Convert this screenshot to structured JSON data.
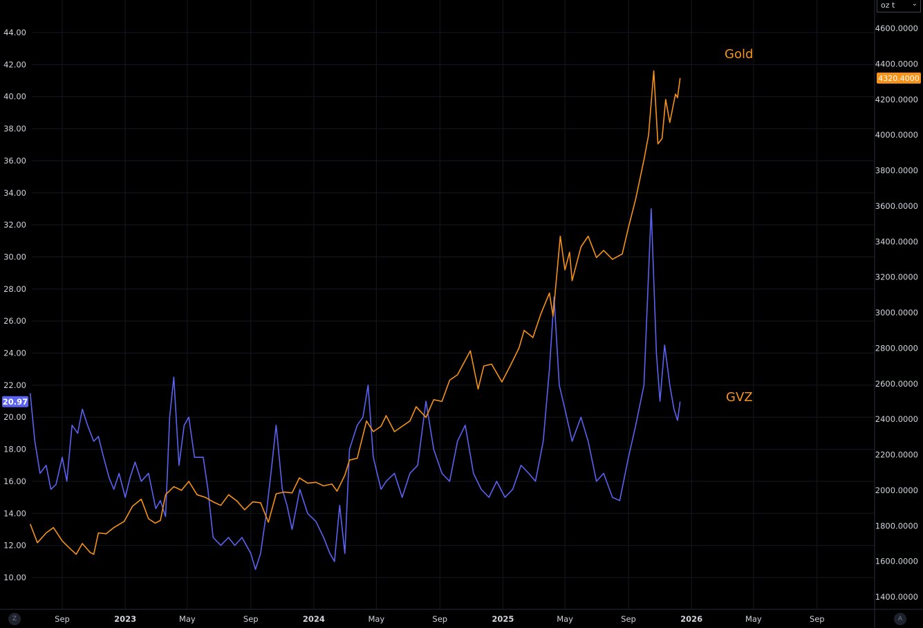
{
  "unit_selector": {
    "label": "oz t",
    "chevron": "⌄"
  },
  "buttons": {
    "left_corner": "Z",
    "right_corner": "A"
  },
  "colors": {
    "gold": "#f7931a",
    "gvz": "#5b63f0",
    "grid": "#1a1d24",
    "axis_text": "#d1d4dc",
    "background": "#000000"
  },
  "chart_data": {
    "type": "line",
    "title": "",
    "x_tick_labels": [
      "Sep",
      "2023",
      "May",
      "Sep",
      "2024",
      "May",
      "Sep",
      "2025",
      "May",
      "Sep",
      "2026",
      "May",
      "Sep"
    ],
    "left_axis": {
      "ticks": [
        "10.00",
        "12.00",
        "14.00",
        "16.00",
        "18.00",
        "20.00",
        "22.00",
        "24.00",
        "26.00",
        "28.00",
        "30.00",
        "32.00",
        "34.00",
        "36.00",
        "38.00",
        "40.00",
        "42.00",
        "44.00"
      ],
      "range": [
        9,
        46
      ]
    },
    "right_axis": {
      "ticks": [
        "1400.0000",
        "1600.0000",
        "1800.0000",
        "2000.0000",
        "2200.0000",
        "2400.0000",
        "2600.0000",
        "2800.0000",
        "3000.0000",
        "3200.0000",
        "3400.0000",
        "3600.0000",
        "3800.0000",
        "4000.0000",
        "4200.0000",
        "4400.0000",
        "4600.0000"
      ],
      "range": [
        1345,
        4675
      ]
    },
    "last_value_badges": {
      "gvz": "20.97",
      "gold": "4320.4000"
    },
    "series": [
      {
        "name": "Gold",
        "axis": "right",
        "points": [
          [
            "2022-07-01",
            1810
          ],
          [
            "2022-07-15",
            1705
          ],
          [
            "2022-08-01",
            1760
          ],
          [
            "2022-08-15",
            1790
          ],
          [
            "2022-09-01",
            1715
          ],
          [
            "2022-09-15",
            1675
          ],
          [
            "2022-09-28",
            1640
          ],
          [
            "2022-10-10",
            1700
          ],
          [
            "2022-10-25",
            1650
          ],
          [
            "2022-11-01",
            1640
          ],
          [
            "2022-11-10",
            1760
          ],
          [
            "2022-11-25",
            1755
          ],
          [
            "2022-12-10",
            1790
          ],
          [
            "2022-12-30",
            1825
          ],
          [
            "2023-01-15",
            1910
          ],
          [
            "2023-02-01",
            1950
          ],
          [
            "2023-02-15",
            1840
          ],
          [
            "2023-02-28",
            1815
          ],
          [
            "2023-03-10",
            1830
          ],
          [
            "2023-03-20",
            1975
          ],
          [
            "2023-04-05",
            2020
          ],
          [
            "2023-04-20",
            2000
          ],
          [
            "2023-05-04",
            2050
          ],
          [
            "2023-05-20",
            1975
          ],
          [
            "2023-06-05",
            1960
          ],
          [
            "2023-06-20",
            1935
          ],
          [
            "2023-07-05",
            1915
          ],
          [
            "2023-07-20",
            1975
          ],
          [
            "2023-08-05",
            1940
          ],
          [
            "2023-08-20",
            1890
          ],
          [
            "2023-09-05",
            1935
          ],
          [
            "2023-09-20",
            1930
          ],
          [
            "2023-10-05",
            1820
          ],
          [
            "2023-10-20",
            1980
          ],
          [
            "2023-11-05",
            1990
          ],
          [
            "2023-11-20",
            1985
          ],
          [
            "2023-12-04",
            2070
          ],
          [
            "2023-12-20",
            2040
          ],
          [
            "2024-01-05",
            2045
          ],
          [
            "2024-01-20",
            2025
          ],
          [
            "2024-02-05",
            2035
          ],
          [
            "2024-02-15",
            1995
          ],
          [
            "2024-03-01",
            2085
          ],
          [
            "2024-03-10",
            2170
          ],
          [
            "2024-03-25",
            2180
          ],
          [
            "2024-04-12",
            2390
          ],
          [
            "2024-04-25",
            2330
          ],
          [
            "2024-05-10",
            2360
          ],
          [
            "2024-05-20",
            2420
          ],
          [
            "2024-06-05",
            2330
          ],
          [
            "2024-06-20",
            2360
          ],
          [
            "2024-07-05",
            2390
          ],
          [
            "2024-07-17",
            2470
          ],
          [
            "2024-08-05",
            2410
          ],
          [
            "2024-08-20",
            2510
          ],
          [
            "2024-09-05",
            2500
          ],
          [
            "2024-09-20",
            2620
          ],
          [
            "2024-10-05",
            2650
          ],
          [
            "2024-10-30",
            2785
          ],
          [
            "2024-11-14",
            2570
          ],
          [
            "2024-11-25",
            2700
          ],
          [
            "2024-12-10",
            2710
          ],
          [
            "2024-12-30",
            2610
          ],
          [
            "2025-01-15",
            2700
          ],
          [
            "2025-02-01",
            2800
          ],
          [
            "2025-02-11",
            2900
          ],
          [
            "2025-02-28",
            2860
          ],
          [
            "2025-03-15",
            2990
          ],
          [
            "2025-04-01",
            3110
          ],
          [
            "2025-04-08",
            2980
          ],
          [
            "2025-04-22",
            3430
          ],
          [
            "2025-05-01",
            3240
          ],
          [
            "2025-05-10",
            3340
          ],
          [
            "2025-05-15",
            3180
          ],
          [
            "2025-06-01",
            3370
          ],
          [
            "2025-06-15",
            3430
          ],
          [
            "2025-07-01",
            3310
          ],
          [
            "2025-07-15",
            3350
          ],
          [
            "2025-08-01",
            3300
          ],
          [
            "2025-08-20",
            3330
          ],
          [
            "2025-09-01",
            3480
          ],
          [
            "2025-09-15",
            3640
          ],
          [
            "2025-10-01",
            3860
          ],
          [
            "2025-10-10",
            4000
          ],
          [
            "2025-10-20",
            4360
          ],
          [
            "2025-10-28",
            3950
          ],
          [
            "2025-11-05",
            3980
          ],
          [
            "2025-11-12",
            4200
          ],
          [
            "2025-11-20",
            4070
          ],
          [
            "2025-12-01",
            4230
          ],
          [
            "2025-12-05",
            4210
          ],
          [
            "2025-12-10",
            4320.4
          ]
        ]
      },
      {
        "name": "GVZ",
        "axis": "left",
        "points": [
          [
            "2022-07-01",
            21.5
          ],
          [
            "2022-07-10",
            18.5
          ],
          [
            "2022-07-20",
            16.5
          ],
          [
            "2022-08-01",
            17.0
          ],
          [
            "2022-08-10",
            15.5
          ],
          [
            "2022-08-20",
            15.8
          ],
          [
            "2022-09-01",
            17.5
          ],
          [
            "2022-09-10",
            16.0
          ],
          [
            "2022-09-20",
            19.5
          ],
          [
            "2022-10-01",
            19.0
          ],
          [
            "2022-10-10",
            20.5
          ],
          [
            "2022-10-20",
            19.5
          ],
          [
            "2022-11-01",
            18.5
          ],
          [
            "2022-11-10",
            18.8
          ],
          [
            "2022-11-20",
            17.5
          ],
          [
            "2022-12-01",
            16.2
          ],
          [
            "2022-12-10",
            15.5
          ],
          [
            "2022-12-20",
            16.5
          ],
          [
            "2023-01-01",
            15.0
          ],
          [
            "2023-01-10",
            16.2
          ],
          [
            "2023-01-20",
            17.2
          ],
          [
            "2023-02-01",
            16.0
          ],
          [
            "2023-02-15",
            16.5
          ],
          [
            "2023-03-01",
            14.3
          ],
          [
            "2023-03-10",
            14.8
          ],
          [
            "2023-03-20",
            13.8
          ],
          [
            "2023-03-28",
            20.0
          ],
          [
            "2023-04-05",
            22.5
          ],
          [
            "2023-04-15",
            17.0
          ],
          [
            "2023-04-25",
            19.5
          ],
          [
            "2023-05-04",
            20.0
          ],
          [
            "2023-05-15",
            17.5
          ],
          [
            "2023-06-01",
            17.5
          ],
          [
            "2023-06-10",
            15.5
          ],
          [
            "2023-06-20",
            12.5
          ],
          [
            "2023-07-05",
            12.0
          ],
          [
            "2023-07-20",
            12.5
          ],
          [
            "2023-08-01",
            12.0
          ],
          [
            "2023-08-15",
            12.5
          ],
          [
            "2023-09-01",
            11.5
          ],
          [
            "2023-09-10",
            10.5
          ],
          [
            "2023-09-20",
            11.5
          ],
          [
            "2023-10-01",
            14.0
          ],
          [
            "2023-10-10",
            16.5
          ],
          [
            "2023-10-20",
            19.5
          ],
          [
            "2023-11-01",
            15.5
          ],
          [
            "2023-11-10",
            14.5
          ],
          [
            "2023-11-20",
            13.0
          ],
          [
            "2023-12-05",
            15.5
          ],
          [
            "2023-12-20",
            14.0
          ],
          [
            "2024-01-05",
            13.5
          ],
          [
            "2024-01-20",
            12.5
          ],
          [
            "2024-02-01",
            11.5
          ],
          [
            "2024-02-10",
            11.0
          ],
          [
            "2024-02-20",
            14.5
          ],
          [
            "2024-03-01",
            11.5
          ],
          [
            "2024-03-10",
            18.0
          ],
          [
            "2024-03-25",
            19.5
          ],
          [
            "2024-04-05",
            20.0
          ],
          [
            "2024-04-15",
            22.0
          ],
          [
            "2024-04-25",
            17.5
          ],
          [
            "2024-05-10",
            15.5
          ],
          [
            "2024-05-20",
            16.0
          ],
          [
            "2024-06-05",
            16.5
          ],
          [
            "2024-06-20",
            15.0
          ],
          [
            "2024-07-05",
            16.5
          ],
          [
            "2024-07-20",
            17.0
          ],
          [
            "2024-08-05",
            21.0
          ],
          [
            "2024-08-20",
            18.0
          ],
          [
            "2024-09-05",
            16.5
          ],
          [
            "2024-09-20",
            16.0
          ],
          [
            "2024-10-05",
            18.5
          ],
          [
            "2024-10-20",
            19.5
          ],
          [
            "2024-11-05",
            16.5
          ],
          [
            "2024-11-20",
            15.5
          ],
          [
            "2024-12-05",
            15.0
          ],
          [
            "2024-12-20",
            16.0
          ],
          [
            "2025-01-05",
            15.0
          ],
          [
            "2025-01-20",
            15.5
          ],
          [
            "2025-02-05",
            17.0
          ],
          [
            "2025-02-20",
            16.5
          ],
          [
            "2025-03-05",
            16.0
          ],
          [
            "2025-03-20",
            18.5
          ],
          [
            "2025-04-01",
            23.0
          ],
          [
            "2025-04-10",
            27.5
          ],
          [
            "2025-04-20",
            22.0
          ],
          [
            "2025-05-01",
            20.5
          ],
          [
            "2025-05-15",
            18.5
          ],
          [
            "2025-06-01",
            20.0
          ],
          [
            "2025-06-15",
            18.5
          ],
          [
            "2025-07-01",
            16.0
          ],
          [
            "2025-07-15",
            16.5
          ],
          [
            "2025-08-01",
            15.0
          ],
          [
            "2025-08-15",
            14.8
          ],
          [
            "2025-09-01",
            17.5
          ],
          [
            "2025-09-15",
            19.5
          ],
          [
            "2025-10-01",
            22.0
          ],
          [
            "2025-10-10",
            29.0
          ],
          [
            "2025-10-15",
            33.0
          ],
          [
            "2025-10-25",
            24.0
          ],
          [
            "2025-11-01",
            21.0
          ],
          [
            "2025-11-10",
            24.5
          ],
          [
            "2025-11-20",
            22.0
          ],
          [
            "2025-11-28",
            20.5
          ],
          [
            "2025-12-05",
            19.8
          ],
          [
            "2025-12-10",
            20.97
          ]
        ]
      }
    ],
    "annotations": [
      "Gold",
      "GVZ"
    ]
  }
}
